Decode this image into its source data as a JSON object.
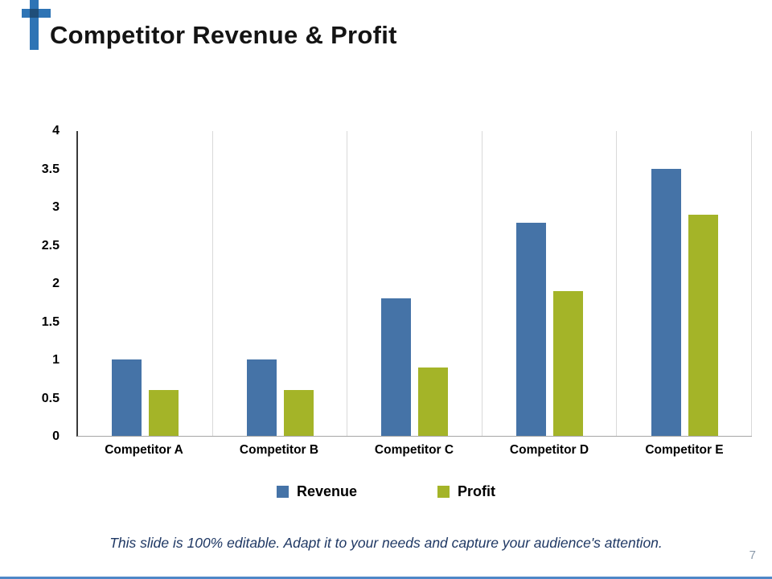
{
  "slide": {
    "title": "Competitor Revenue & Profit",
    "footer": "This slide is 100% editable. Adapt it to your needs and capture your audience's attention.",
    "page_number": "7"
  },
  "chart_data": {
    "type": "bar",
    "title": "Competitor Revenue & Profit",
    "categories": [
      "Competitor A",
      "Competitor B",
      "Competitor C",
      "Competitor D",
      "Competitor E"
    ],
    "series": [
      {
        "name": "Revenue",
        "color": "#4573a7",
        "values": [
          1,
          1,
          1.8,
          2.8,
          3.5
        ]
      },
      {
        "name": "Profit",
        "color": "#a4b428",
        "values": [
          0.6,
          0.6,
          0.9,
          1.9,
          2.9
        ]
      }
    ],
    "ylim": [
      0,
      4
    ],
    "yticks": [
      "4",
      "3.5",
      "3",
      "2.5",
      "2",
      "1.5",
      "1",
      "0.5",
      "0"
    ],
    "grid": "vertical-category-separators",
    "legend_position": "bottom"
  },
  "colors": {
    "revenue_bar": "#4573a7",
    "profit_bar": "#a4b428",
    "footer_text": "#1f3864",
    "accent_line": "#4e87c7",
    "logo_blue": "#2e74b5",
    "logo_dark": "#1f4e79",
    "gridline": "#d9d9d9"
  }
}
